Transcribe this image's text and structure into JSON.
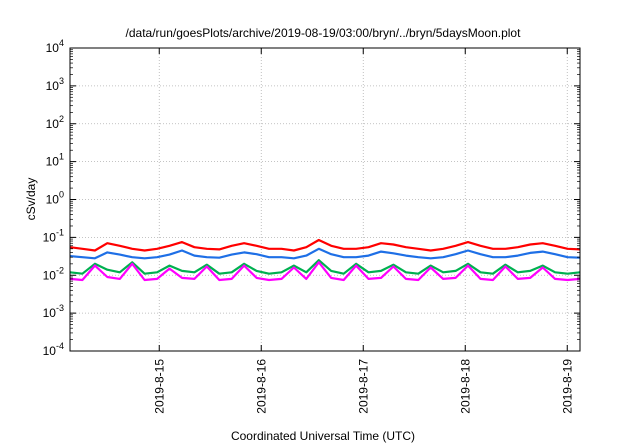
{
  "chart_data": {
    "type": "line",
    "title": "/data/run/goesPlots/archive/2019-08-19/03:00/bryn/../bryn/5daysMoon.plot",
    "xlabel": "Coordinated Universal Time (UTC)",
    "ylabel": "cSv/day",
    "yscale": "log",
    "ylim": [
      0.0001,
      10000
    ],
    "xlim": [
      "2019-08-14 03:00",
      "2019-08-19 03:00"
    ],
    "grid": true,
    "legend": "none",
    "y_ticks": [
      {
        "base": "10",
        "exp": "-4"
      },
      {
        "base": "10",
        "exp": "-3"
      },
      {
        "base": "10",
        "exp": "-2"
      },
      {
        "base": "10",
        "exp": "-1"
      },
      {
        "base": "10",
        "exp": "0"
      },
      {
        "base": "10",
        "exp": "1"
      },
      {
        "base": "10",
        "exp": "2"
      },
      {
        "base": "10",
        "exp": "3"
      },
      {
        "base": "10",
        "exp": "4"
      }
    ],
    "x_ticks": [
      "2019-8-15",
      "2019-8-16",
      "2019-8-17",
      "2019-8-18",
      "2019-8-19"
    ],
    "series": [
      {
        "color": "#ff0000",
        "values": [
          0.055,
          0.05,
          0.045,
          0.07,
          0.06,
          0.05,
          0.045,
          0.05,
          0.06,
          0.075,
          0.055,
          0.05,
          0.048,
          0.06,
          0.07,
          0.06,
          0.05,
          0.05,
          0.045,
          0.055,
          0.085,
          0.06,
          0.05,
          0.05,
          0.055,
          0.07,
          0.065,
          0.055,
          0.05,
          0.045,
          0.05,
          0.06,
          0.075,
          0.06,
          0.05,
          0.05,
          0.055,
          0.065,
          0.07,
          0.06,
          0.05,
          0.048
        ]
      },
      {
        "color": "#1e6fe6",
        "values": [
          0.032,
          0.03,
          0.028,
          0.04,
          0.035,
          0.03,
          0.028,
          0.03,
          0.035,
          0.045,
          0.033,
          0.03,
          0.029,
          0.035,
          0.04,
          0.036,
          0.03,
          0.03,
          0.028,
          0.033,
          0.05,
          0.036,
          0.03,
          0.03,
          0.033,
          0.042,
          0.038,
          0.033,
          0.03,
          0.028,
          0.03,
          0.036,
          0.045,
          0.036,
          0.03,
          0.03,
          0.033,
          0.039,
          0.042,
          0.036,
          0.03,
          0.029
        ]
      },
      {
        "color": "#00b050",
        "values": [
          0.012,
          0.011,
          0.02,
          0.014,
          0.012,
          0.022,
          0.011,
          0.012,
          0.018,
          0.013,
          0.012,
          0.019,
          0.011,
          0.012,
          0.02,
          0.013,
          0.011,
          0.012,
          0.018,
          0.012,
          0.025,
          0.013,
          0.011,
          0.02,
          0.012,
          0.013,
          0.019,
          0.012,
          0.011,
          0.018,
          0.012,
          0.013,
          0.02,
          0.012,
          0.011,
          0.019,
          0.012,
          0.013,
          0.018,
          0.012,
          0.011,
          0.012
        ]
      },
      {
        "color": "#ff00ff",
        "values": [
          0.008,
          0.0075,
          0.018,
          0.009,
          0.008,
          0.02,
          0.0075,
          0.008,
          0.015,
          0.0085,
          0.008,
          0.017,
          0.0075,
          0.008,
          0.018,
          0.0085,
          0.0075,
          0.008,
          0.016,
          0.008,
          0.022,
          0.0085,
          0.0075,
          0.018,
          0.008,
          0.0085,
          0.017,
          0.008,
          0.0075,
          0.016,
          0.008,
          0.0085,
          0.018,
          0.008,
          0.0075,
          0.017,
          0.008,
          0.0085,
          0.016,
          0.008,
          0.0075,
          0.008
        ]
      }
    ]
  }
}
